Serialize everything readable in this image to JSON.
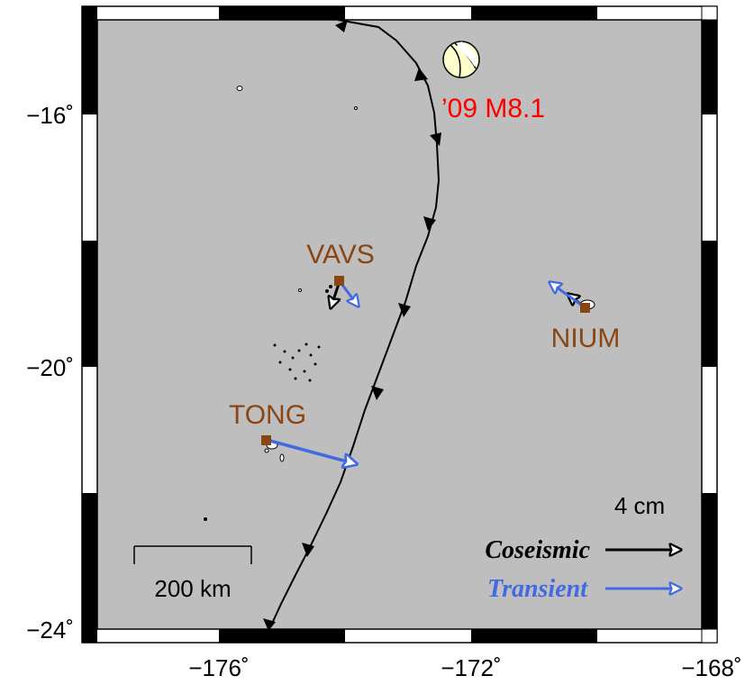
{
  "map": {
    "x_ticks": [
      "−176˚",
      "−172˚",
      "−168˚"
    ],
    "y_ticks": [
      "−16˚",
      "−20˚",
      "−24˚"
    ],
    "background_color": "#bebebe"
  },
  "stations": [
    {
      "name": "VAVS",
      "coseismic": true,
      "transient": true
    },
    {
      "name": "NIUM",
      "coseismic": true,
      "transient": true
    },
    {
      "name": "TONG",
      "coseismic": false,
      "transient": true
    }
  ],
  "earthquake": {
    "label": "’09 M8.1",
    "color": "#ff0000",
    "symbol": "beachball-icon"
  },
  "scale_bar": {
    "label": "200 km"
  },
  "legend": {
    "reference": "4 cm",
    "coseismic_label": "Coseismic",
    "transient_label": "Transient",
    "coseismic_color": "#000000",
    "transient_color": "#4169e1"
  }
}
